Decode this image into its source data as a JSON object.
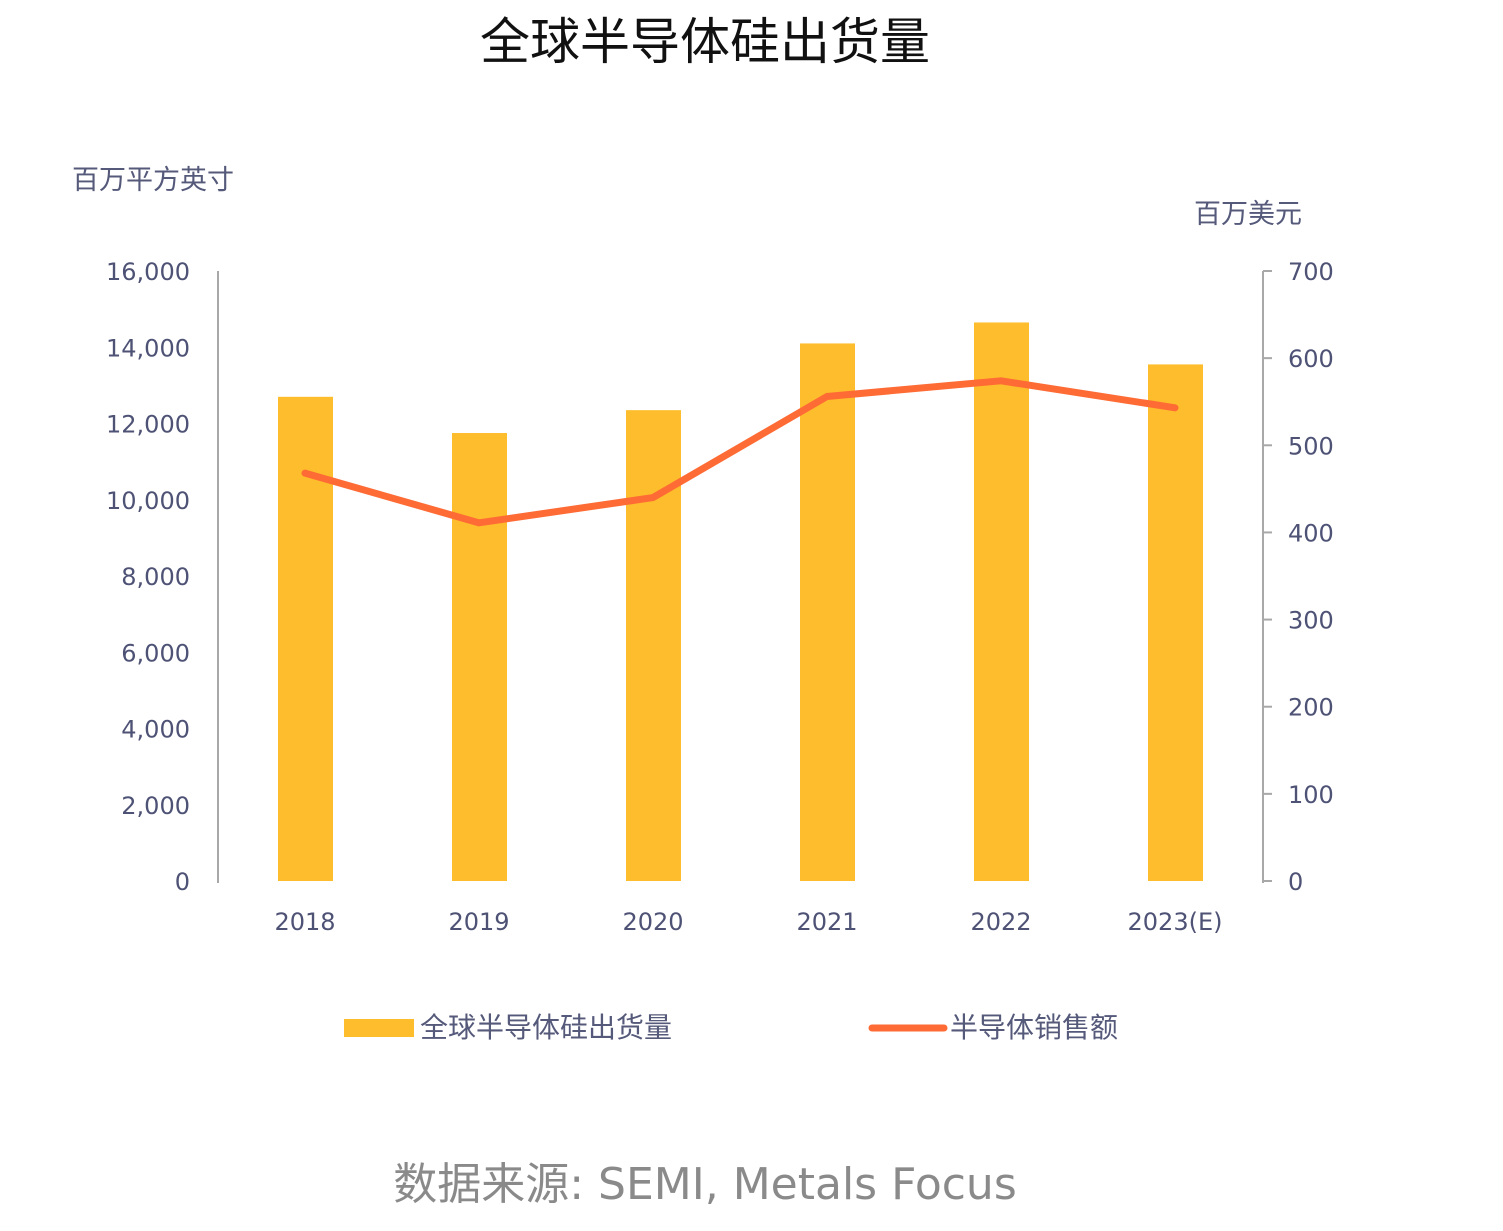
{
  "chart_data": {
    "type": "bar+line",
    "title": "全球半导体硅出货量",
    "categories": [
      "2018",
      "2019",
      "2020",
      "2021",
      "2022",
      "2023(E)"
    ],
    "y_left": {
      "label": "百万平方英寸",
      "range": [
        0,
        16000
      ],
      "ticks": [
        "0",
        "2,000",
        "4,000",
        "6,000",
        "8,000",
        "10,000",
        "12,000",
        "14,000",
        "16,000"
      ]
    },
    "y_right": {
      "label": "百万美元",
      "range": [
        0,
        700
      ],
      "ticks": [
        "0",
        "100",
        "200",
        "300",
        "400",
        "500",
        "600",
        "700"
      ]
    },
    "series": [
      {
        "name": "全球半导体硅出货量",
        "type": "bar",
        "axis": "left",
        "color": "#FDBD2C",
        "values": [
          12700,
          11750,
          12350,
          14100,
          14650,
          13550
        ]
      },
      {
        "name": "半导体销售额",
        "type": "line",
        "axis": "right",
        "color": "#FF6B35",
        "values": [
          468,
          411,
          440,
          556,
          574,
          543
        ]
      }
    ],
    "legend": "bottom",
    "grid": false,
    "source": "数据来源: SEMI, Metals Focus"
  }
}
